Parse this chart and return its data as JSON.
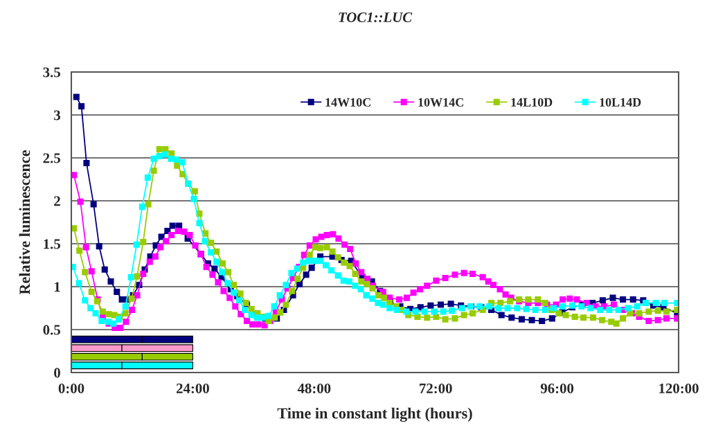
{
  "chart_data": [
    {
      "type": "line",
      "title": "TOC1::LUC",
      "xlabel": "Time in constant light (hours)",
      "ylabel": "Relative luminescence",
      "xlim": [
        0,
        120
      ],
      "ylim": [
        0,
        3.5
      ],
      "xticks": [
        {
          "value": 0,
          "label": "0:00"
        },
        {
          "value": 24,
          "label": "24:00"
        },
        {
          "value": 48,
          "label": "48:00"
        },
        {
          "value": 72,
          "label": "72:00"
        },
        {
          "value": 96,
          "label": "96:00"
        },
        {
          "value": 120,
          "label": "120:00"
        }
      ],
      "yticks": [
        0,
        0.5,
        1,
        1.5,
        2,
        2.5,
        3,
        3.5
      ],
      "grid": "y",
      "legend": "top right",
      "marker": "square",
      "line_style": "solid",
      "series": [
        {
          "name": "14W10C",
          "color": "#000080",
          "x": [
            1,
            2,
            3,
            4.4,
            5.5,
            6.6,
            7.8,
            9,
            10,
            11,
            12.2,
            13.4,
            14.5,
            15.6,
            16.7,
            17.8,
            19,
            20,
            21.3,
            23,
            25.6,
            27,
            28.3,
            29.7,
            31.5,
            32.8,
            34.7,
            36.5,
            38.3,
            40.6,
            42,
            43.8,
            45.1,
            46.4,
            47.5,
            49.2,
            51.6,
            53.4,
            55.3,
            57.5,
            59.4,
            61,
            63,
            65,
            67,
            69,
            71,
            73,
            75,
            77,
            79,
            81,
            83,
            85,
            87,
            89,
            91,
            93,
            95,
            97,
            99,
            101,
            103,
            105,
            107,
            109,
            111,
            113,
            115,
            117,
            119.7
          ],
          "values": [
            3.21,
            3.1,
            2.44,
            1.96,
            1.47,
            1.2,
            1.06,
            0.94,
            0.85,
            0.85,
            0.9,
            1.02,
            1.2,
            1.35,
            1.48,
            1.58,
            1.65,
            1.71,
            1.71,
            1.56,
            1.38,
            1.27,
            1.21,
            1.11,
            0.97,
            0.89,
            0.79,
            0.69,
            0.63,
            0.63,
            0.73,
            0.9,
            1.03,
            1.14,
            1.22,
            1.35,
            1.35,
            1.31,
            1.3,
            1.11,
            1.06,
            0.95,
            0.82,
            0.77,
            0.74,
            0.76,
            0.78,
            0.79,
            0.8,
            0.78,
            0.77,
            0.76,
            0.73,
            0.67,
            0.64,
            0.62,
            0.61,
            0.6,
            0.63,
            0.7,
            0.76,
            0.79,
            0.81,
            0.84,
            0.87,
            0.85,
            0.85,
            0.84,
            0.78,
            0.76,
            0.69
          ]
        },
        {
          "name": "10W14C",
          "color": "#ff00ff",
          "x": [
            0.5,
            1.8,
            2.9,
            4,
            5.2,
            6.2,
            7.4,
            8.6,
            9.7,
            10.8,
            12,
            13,
            14.2,
            15.5,
            16.6,
            17.6,
            18.7,
            19.8,
            21.1,
            22.3,
            23.4,
            24.5,
            25.6,
            26.7,
            27.9,
            29,
            30.1,
            31.3,
            32.4,
            33.5,
            34.7,
            35.8,
            36.9,
            38.2,
            39.3,
            40.4,
            41.6,
            42.7,
            43.8,
            45,
            46,
            47.1,
            48.3,
            49.4,
            50.5,
            51.7,
            52.8,
            54,
            55.1,
            56.2,
            57.3,
            58.5,
            59.6,
            61.6,
            62.9,
            64.8,
            66.3,
            67.6,
            68.9,
            70.3,
            72.1,
            73.9,
            75.8,
            77.6,
            79.3,
            81.3,
            82.4,
            83.4,
            84.7,
            85.8,
            86.9,
            88.5,
            90.3,
            92.2,
            94,
            95.8,
            97.1,
            98.5,
            99.9,
            101.8,
            103.6,
            105.3,
            107.2,
            109,
            110.8,
            112.2,
            114.1,
            115.9,
            117.6,
            119.7
          ],
          "values": [
            2.3,
            1.99,
            1.46,
            1.18,
            0.85,
            0.65,
            0.57,
            0.52,
            0.52,
            0.59,
            0.73,
            0.9,
            1.15,
            1.29,
            1.35,
            1.46,
            1.53,
            1.6,
            1.65,
            1.64,
            1.6,
            1.48,
            1.38,
            1.23,
            1.14,
            1.05,
            0.95,
            0.87,
            0.77,
            0.68,
            0.6,
            0.56,
            0.56,
            0.55,
            0.6,
            0.71,
            0.85,
            0.98,
            1.1,
            1.23,
            1.37,
            1.48,
            1.55,
            1.58,
            1.6,
            1.61,
            1.56,
            1.49,
            1.44,
            1.27,
            1.17,
            1.09,
            1.01,
            0.94,
            0.87,
            0.85,
            0.87,
            0.93,
            0.97,
            1.01,
            1.07,
            1.1,
            1.14,
            1.16,
            1.15,
            1.11,
            1.06,
            1.02,
            0.97,
            0.91,
            0.87,
            0.83,
            0.81,
            0.81,
            0.79,
            0.79,
            0.85,
            0.86,
            0.85,
            0.81,
            0.77,
            0.77,
            0.79,
            0.73,
            0.69,
            0.65,
            0.6,
            0.61,
            0.63,
            0.63
          ]
        },
        {
          "name": "14L10D",
          "color": "#99cc00",
          "x": [
            0.5,
            1.6,
            2.7,
            4,
            5.1,
            6.2,
            7.4,
            8.5,
            9.6,
            10.7,
            11.9,
            13,
            14.2,
            15.2,
            16.3,
            17.4,
            18.6,
            19.8,
            20.9,
            22,
            23.1,
            24.4,
            25.3,
            26.5,
            27.6,
            28.7,
            29.9,
            31,
            32.1,
            33.4,
            34.5,
            35.6,
            36.8,
            37.9,
            39,
            40.2,
            41.3,
            42.4,
            43.6,
            44.7,
            45.8,
            47.1,
            48.2,
            49.2,
            50.5,
            51.6,
            52.7,
            53.9,
            55,
            56.1,
            57.3,
            58.4,
            59.5,
            60.7,
            61.8,
            62.9,
            64.2,
            65.3,
            66.6,
            68.4,
            70.3,
            72.1,
            73.9,
            75.8,
            77.6,
            79.3,
            81.3,
            83,
            84.8,
            86.7,
            88.5,
            90.3,
            92.2,
            93.6,
            94.9,
            96.3,
            97.7,
            99.5,
            101.2,
            103.1,
            104.9,
            106.7,
            107.7,
            109,
            110.4,
            112.2,
            114.1,
            115.9,
            117.6,
            119.7
          ],
          "values": [
            1.68,
            1.42,
            1.17,
            0.94,
            0.83,
            0.71,
            0.68,
            0.67,
            0.65,
            0.69,
            0.86,
            1.12,
            1.52,
            1.96,
            2.35,
            2.6,
            2.6,
            2.55,
            2.41,
            2.31,
            2.2,
            2.11,
            1.85,
            1.62,
            1.51,
            1.41,
            1.27,
            1.17,
            1.02,
            0.92,
            0.81,
            0.74,
            0.69,
            0.65,
            0.6,
            0.64,
            0.7,
            0.79,
            0.95,
            1.09,
            1.22,
            1.37,
            1.46,
            1.45,
            1.46,
            1.41,
            1.34,
            1.28,
            1.24,
            1.15,
            1.06,
            1.03,
            0.98,
            0.9,
            0.87,
            0.81,
            0.77,
            0.73,
            0.67,
            0.65,
            0.64,
            0.65,
            0.62,
            0.63,
            0.67,
            0.69,
            0.73,
            0.81,
            0.81,
            0.83,
            0.85,
            0.85,
            0.85,
            0.81,
            0.73,
            0.69,
            0.67,
            0.65,
            0.64,
            0.64,
            0.61,
            0.59,
            0.57,
            0.63,
            0.69,
            0.69,
            0.71,
            0.72,
            0.71,
            0.73
          ]
        },
        {
          "name": "10L14D",
          "color": "#00ffff",
          "x": [
            0.3,
            1.5,
            2.7,
            3.8,
            4.8,
            6,
            7.3,
            8.3,
            9.4,
            10.7,
            11.8,
            12.9,
            14,
            15.1,
            16.3,
            17.4,
            18.5,
            19.7,
            20.8,
            21.9,
            23.1,
            24.2,
            25.3,
            26.4,
            27.6,
            28.7,
            29.8,
            30.9,
            32.1,
            33.2,
            34.3,
            35.6,
            36.7,
            37.8,
            39,
            40.1,
            41.2,
            42.4,
            43.5,
            44.6,
            45.8,
            46.9,
            48,
            49.2,
            50.3,
            51.4,
            52.7,
            53.8,
            54.9,
            56.1,
            57.2,
            58.3,
            59.5,
            60.6,
            61.6,
            62.9,
            64.3,
            66.2,
            68,
            69.8,
            71.7,
            73.5,
            75.2,
            77.2,
            78.9,
            80.7,
            82.6,
            84.4,
            86.2,
            88.1,
            89.9,
            91.7,
            93.6,
            95.3,
            97.1,
            99,
            100.8,
            102.6,
            104.5,
            106.3,
            108.1,
            110,
            111.8,
            113.5,
            115.5,
            117.2,
            119.7
          ],
          "values": [
            1.23,
            1.04,
            0.84,
            0.75,
            0.69,
            0.6,
            0.59,
            0.57,
            0.62,
            0.77,
            1.11,
            1.49,
            1.93,
            2.27,
            2.49,
            2.52,
            2.54,
            2.49,
            2.48,
            2.45,
            2.2,
            2.02,
            1.74,
            1.53,
            1.4,
            1.29,
            1.17,
            1.04,
            0.93,
            0.84,
            0.73,
            0.67,
            0.64,
            0.64,
            0.66,
            0.77,
            0.9,
            1.02,
            1.16,
            1.21,
            1.28,
            1.3,
            1.3,
            1.3,
            1.25,
            1.19,
            1.13,
            1.07,
            1.06,
            1.01,
            0.97,
            0.9,
            0.86,
            0.81,
            0.79,
            0.75,
            0.73,
            0.71,
            0.71,
            0.71,
            0.71,
            0.71,
            0.72,
            0.75,
            0.77,
            0.77,
            0.77,
            0.75,
            0.75,
            0.75,
            0.74,
            0.73,
            0.73,
            0.75,
            0.77,
            0.78,
            0.77,
            0.75,
            0.73,
            0.73,
            0.73,
            0.75,
            0.77,
            0.81,
            0.81,
            0.81,
            0.81
          ]
        }
      ]
    },
    {
      "type": "bar",
      "orientation": "horizontal",
      "stacked": true,
      "categories": [
        null
      ],
      "xlim": [
        0,
        120
      ],
      "tick_labels": false,
      "series": [
        {
          "color": "#000080",
          "values": [
            14
          ]
        },
        {
          "color": "#000080",
          "values": [
            10
          ]
        }
      ]
    },
    {
      "type": "bar",
      "orientation": "horizontal",
      "stacked": true,
      "categories": [
        null
      ],
      "xlim": [
        0,
        120
      ],
      "tick_labels": false,
      "series": [
        {
          "color": "#ff99cc",
          "values": [
            10
          ]
        },
        {
          "color": "#ff99cc",
          "values": [
            14
          ]
        }
      ]
    },
    {
      "type": "bar",
      "orientation": "horizontal",
      "stacked": true,
      "categories": [
        null
      ],
      "xlim": [
        0,
        120
      ],
      "tick_labels": false,
      "series": [
        {
          "color": "#99cc00",
          "values": [
            14
          ]
        },
        {
          "color": "#99cc00",
          "values": [
            10
          ]
        }
      ]
    },
    {
      "type": "bar",
      "orientation": "horizontal",
      "stacked": true,
      "categories": [
        null
      ],
      "xlim": [
        0,
        120
      ],
      "tick_labels": false,
      "series": [
        {
          "color": "#00ffff",
          "values": [
            10
          ]
        },
        {
          "color": "#00ffff",
          "values": [
            14
          ]
        }
      ]
    }
  ]
}
